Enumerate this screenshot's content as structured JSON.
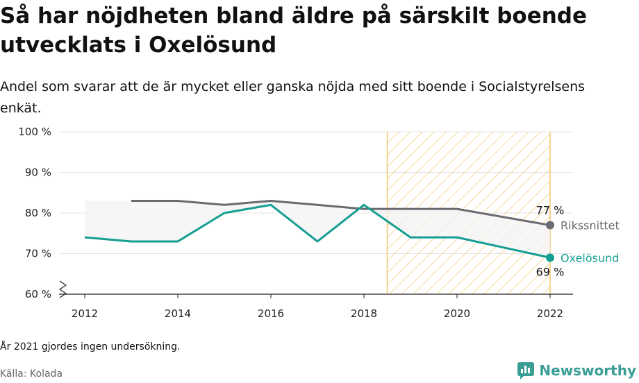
{
  "header": {
    "title": "Så har nöjdheten bland äldre på särskilt boende utvecklats i Oxelösund",
    "subtitle": "Andel som svarar att de är mycket eller ganska nöjda med sitt boende i Socialstyrelsens enkät."
  },
  "footer": {
    "note": "År 2021 gjordes ingen undersökning.",
    "source": "Källa: Kolada",
    "brand": "Newsworthy"
  },
  "chart_data": {
    "type": "line",
    "x_ticks": [
      2012,
      2014,
      2016,
      2018,
      2020,
      2022
    ],
    "y_ticks": [
      60,
      70,
      80,
      90,
      100
    ],
    "y_tick_labels": [
      "60 %",
      "70 %",
      "80 %",
      "90 %",
      "100 %"
    ],
    "xlim": [
      2012,
      2022
    ],
    "ylim": [
      60,
      100
    ],
    "y_axis_break": true,
    "grid": "horizontal",
    "highlight_period": [
      2018.5,
      2022
    ],
    "series": [
      {
        "name": "Rikssnittet",
        "color": "#6b6a70",
        "x": [
          2013,
          2014,
          2015,
          2016,
          2017,
          2018,
          2019,
          2020,
          2022
        ],
        "values": [
          83,
          83,
          82,
          83,
          82,
          81,
          81,
          81,
          77
        ],
        "end_label": "77 %"
      },
      {
        "name": "Oxelösund",
        "color": "#159e92",
        "x": [
          2012,
          2013,
          2014,
          2015,
          2016,
          2017,
          2018,
          2019,
          2020,
          2022
        ],
        "values": [
          74,
          73,
          73,
          80,
          82,
          73,
          82,
          74,
          74,
          69
        ],
        "end_label": "69 %"
      }
    ],
    "band": {
      "x": [
        2012,
        2013,
        2014,
        2015,
        2016,
        2017,
        2018,
        2019,
        2020,
        2022
      ],
      "upper": [
        83,
        83,
        83,
        82,
        83,
        82,
        81,
        81,
        81,
        77
      ],
      "color": "#f3f3f3"
    },
    "highlight_color": "#f5c66e"
  }
}
